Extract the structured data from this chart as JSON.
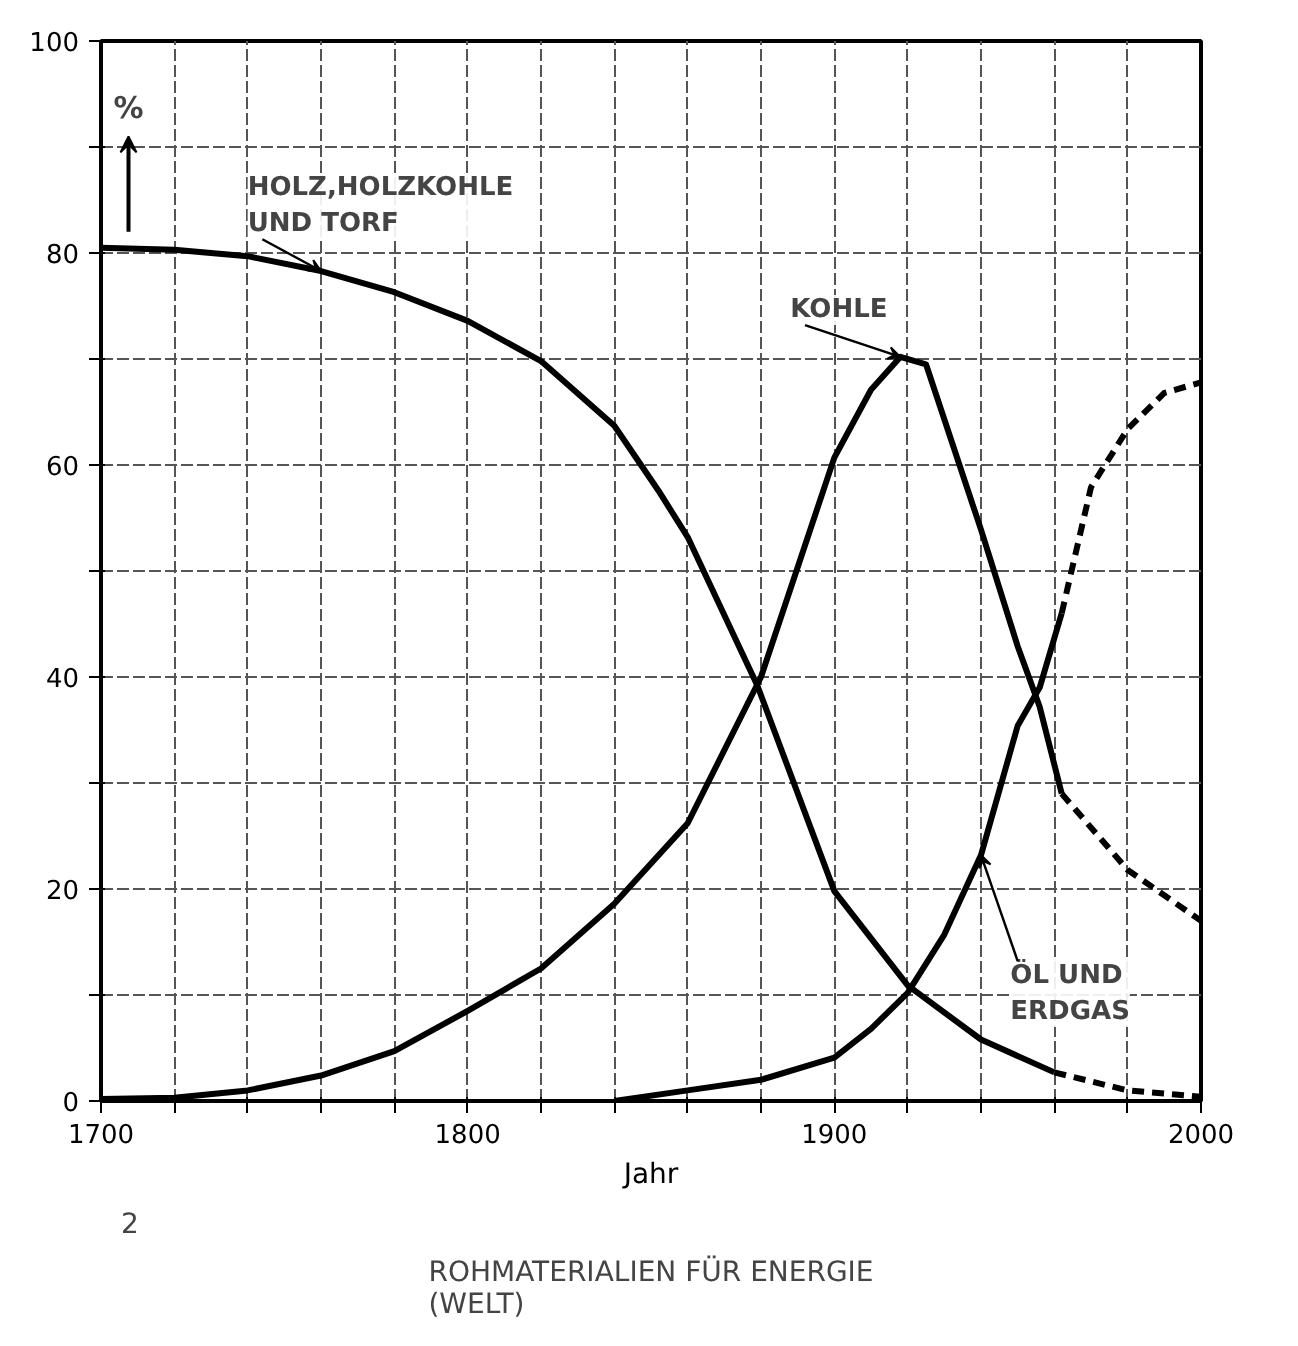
{
  "chart_data": {
    "type": "line",
    "title": "ROHMATERIALIEN FÜR ENERGIE\n(WELT)",
    "xlabel": "Jahr",
    "ylabel": "%",
    "xlim": [
      1700,
      2000
    ],
    "ylim": [
      0,
      100
    ],
    "xticks": [
      1700,
      {
        "value": 1720,
        "label": null
      },
      {
        "value": 1740,
        "label": null
      },
      {
        "value": 1760,
        "label": null
      },
      {
        "value": 1780,
        "label": null
      },
      1800,
      {
        "value": 1820,
        "label": null
      },
      {
        "value": 1840,
        "label": null
      },
      {
        "value": 1860,
        "label": null
      },
      {
        "value": 1880,
        "label": null
      },
      1900,
      {
        "value": 1920,
        "label": null
      },
      {
        "value": 1940,
        "label": null
      },
      {
        "value": 1960,
        "label": null
      },
      {
        "value": 1980,
        "label": null
      },
      2000
    ],
    "yticks": [
      0,
      {
        "value": 10,
        "label": null
      },
      20,
      {
        "value": 30,
        "label": null
      },
      40,
      {
        "value": 50,
        "label": null
      },
      60,
      {
        "value": 70,
        "label": null
      },
      80,
      {
        "value": 90,
        "label": null
      },
      100
    ],
    "grid": true,
    "marker": "none",
    "series": [
      {
        "color": "#000000",
        "line_style": "solid",
        "x": [
          1700,
          1720,
          1740,
          1760,
          1780,
          1800,
          1820,
          1840,
          1852,
          1860,
          1879,
          1900,
          1920,
          1940,
          1960
        ],
        "values": [
          80.5,
          80.3,
          79.7,
          78.3,
          76.3,
          73.6,
          69.8,
          63.7,
          57.6,
          53.2,
          39.2,
          19.8,
          10.9,
          5.8,
          2.7
        ]
      },
      {
        "color": "#000000",
        "line_style": "dashed",
        "x": [
          1960,
          1980,
          2000
        ],
        "values": [
          2.7,
          1.0,
          0.4
        ]
      },
      {
        "color": "#000000",
        "line_style": "solid",
        "x": [
          1700,
          1720,
          1740,
          1760,
          1780,
          1800,
          1820,
          1840,
          1860,
          1880,
          1900,
          1910,
          1918,
          1925,
          1940,
          1950,
          1956,
          1962
        ],
        "values": [
          0.2,
          0.3,
          1.0,
          2.4,
          4.7,
          8.5,
          12.5,
          18.6,
          26.2,
          40,
          60.7,
          67.1,
          70.2,
          69.5,
          53.9,
          42.9,
          37.2,
          29
        ]
      },
      {
        "color": "#000000",
        "line_style": "dashed",
        "x": [
          1962,
          1980,
          2000
        ],
        "values": [
          29,
          21.8,
          17.0
        ]
      },
      {
        "color": "#000000",
        "line_style": "solid",
        "x": [
          1840,
          1860,
          1880,
          1900,
          1910,
          1920,
          1930,
          1940,
          1950,
          1956,
          1962
        ],
        "values": [
          0,
          1.0,
          2.0,
          4.1,
          6.8,
          10.2,
          15.7,
          23.2,
          35.4,
          39,
          46
        ]
      },
      {
        "color": "#000000",
        "line_style": "dashed",
        "x": [
          1962,
          1970,
          1980,
          1990,
          2000
        ],
        "values": [
          46,
          57.9,
          63.4,
          66.8,
          67.8
        ]
      }
    ],
    "annotations": [
      {
        "text": "HOLZ,HOLZKOHLE\nUND TORF",
        "x": 1760,
        "y": 78.3
      },
      {
        "text": "KOHLE",
        "x": 1918,
        "y": 70.2
      },
      {
        "text": "ÖL UND\nERDGAS",
        "x": 1940,
        "y": 23.2
      },
      "2"
    ]
  }
}
